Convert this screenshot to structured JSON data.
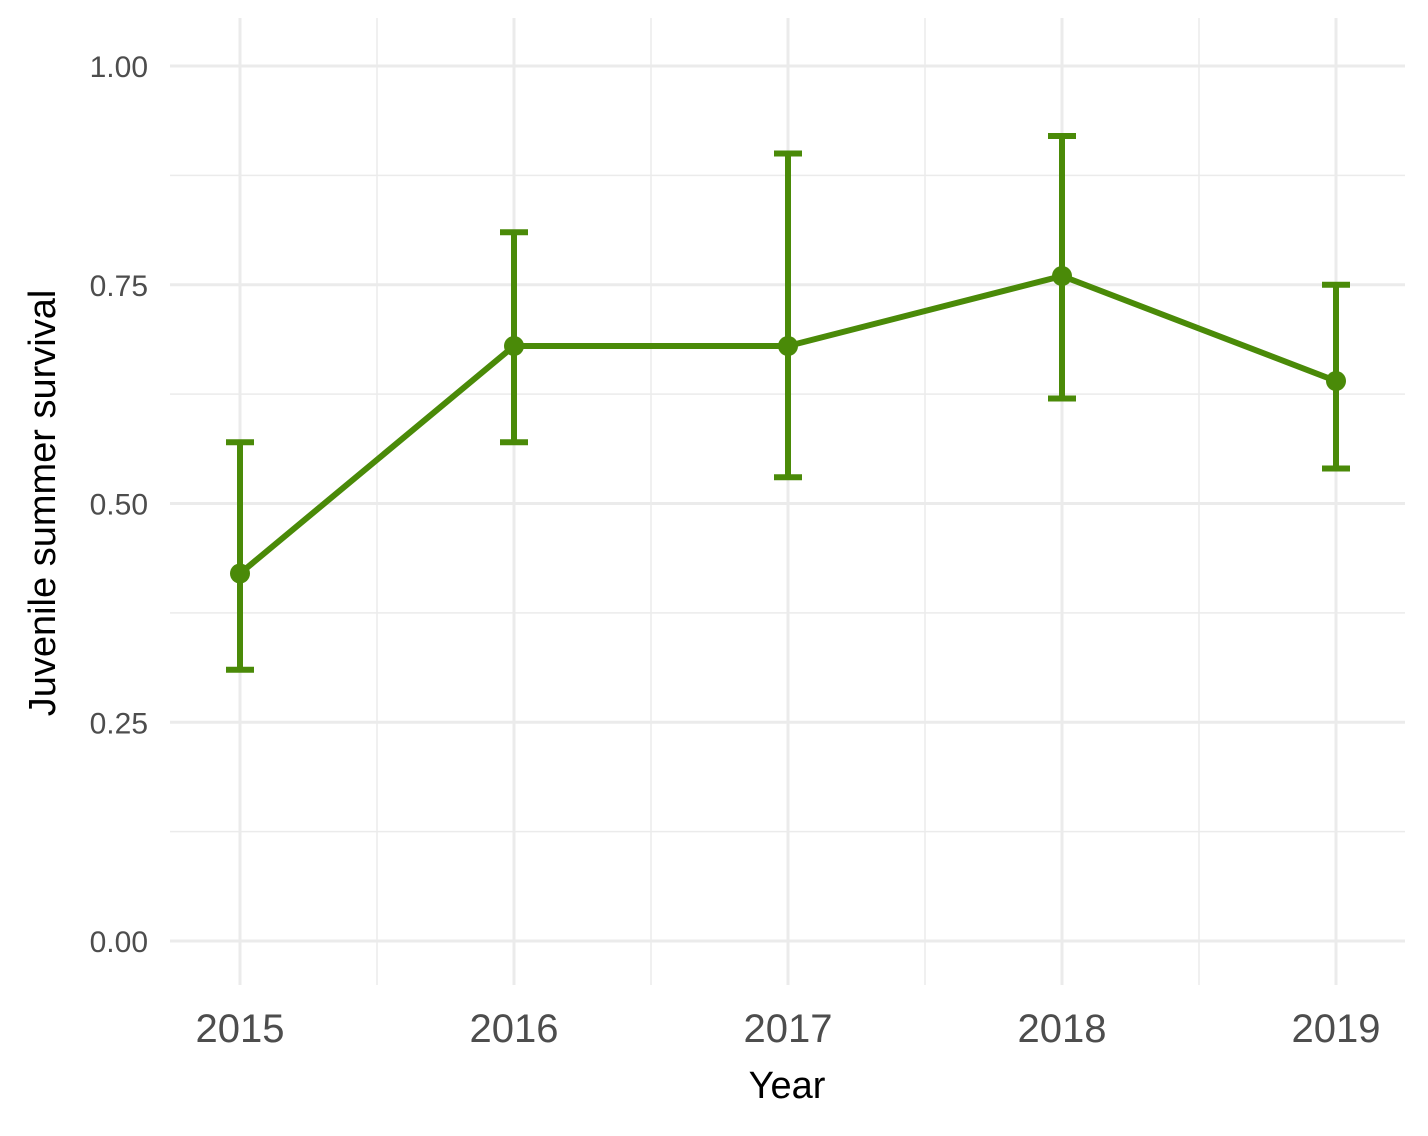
{
  "chart_data": {
    "type": "line",
    "title": "",
    "xlabel": "Year",
    "ylabel": "Juvenile summer survival",
    "x": [
      "2015",
      "2016",
      "2017",
      "2018",
      "2019"
    ],
    "series": [
      {
        "values": [
          0.42,
          0.68,
          0.68,
          0.76,
          0.64
        ],
        "lower": [
          0.31,
          0.57,
          0.53,
          0.62,
          0.54
        ],
        "upper": [
          0.57,
          0.81,
          0.9,
          0.92,
          0.75
        ],
        "color": "#4a8a08"
      }
    ],
    "yticks": [
      "0.00",
      "0.25",
      "0.50",
      "0.75",
      "1.00"
    ],
    "ylim": [
      0,
      1
    ],
    "grid": true,
    "legend": "none"
  },
  "colors": {
    "grid": "#ebebeb",
    "tick_text": "#4d4d4d",
    "axis_title": "#000000"
  }
}
